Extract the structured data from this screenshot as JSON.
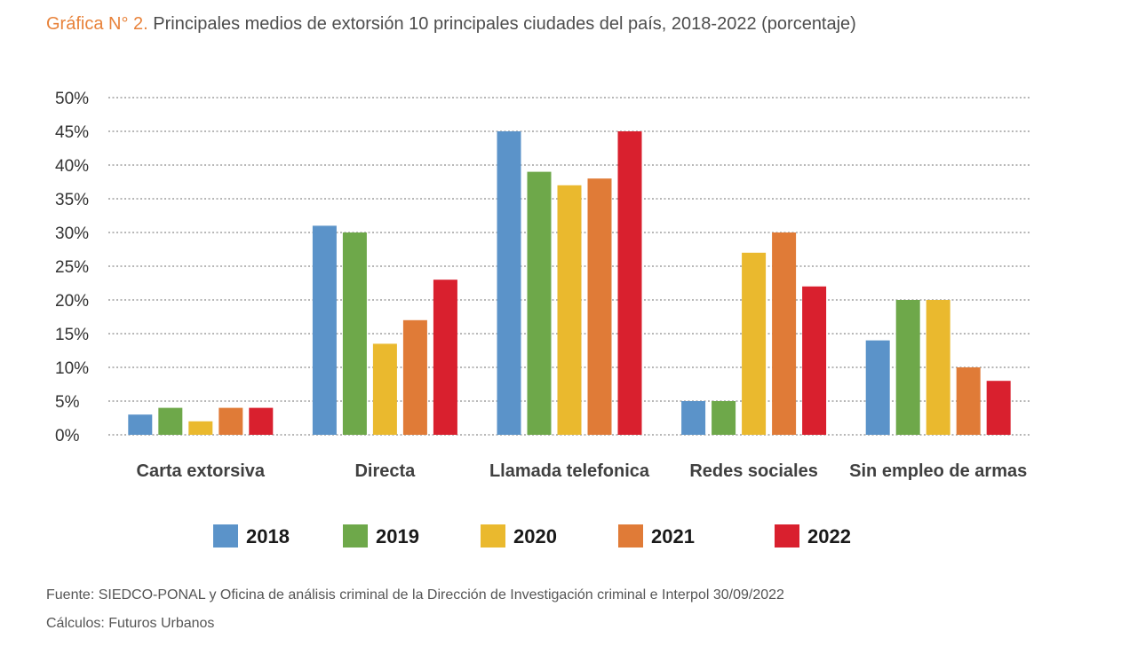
{
  "header": {
    "title_prefix": "Gráfica N° 2.",
    "title_text": " Principales medios de extorsión 10 principales ciudades del país, 2018-2022 (porcentaje)"
  },
  "chart_data": {
    "type": "bar",
    "title": "Principales medios de extorsión 10 principales ciudades del país, 2018-2022 (porcentaje)",
    "categories": [
      "Carta extorsiva",
      "Directa",
      "Llamada telefonica",
      "Redes sociales",
      "Sin empleo de armas"
    ],
    "series": [
      {
        "name": "2018",
        "color": "#5b93c9",
        "values": [
          3,
          31,
          45,
          5,
          14
        ]
      },
      {
        "name": "2019",
        "color": "#6ea84a",
        "values": [
          4,
          30,
          39,
          5,
          20
        ]
      },
      {
        "name": "2020",
        "color": "#eab92e",
        "values": [
          2,
          13.5,
          37,
          27,
          20
        ]
      },
      {
        "name": "2021",
        "color": "#e07b37",
        "values": [
          4,
          17,
          38,
          30,
          10
        ]
      },
      {
        "name": "2022",
        "color": "#d9202e",
        "values": [
          4,
          23,
          45,
          22,
          8
        ]
      }
    ],
    "ylim": [
      0,
      50
    ],
    "yticks": [
      "0%",
      "5%",
      "10%",
      "15%",
      "20%",
      "25%",
      "30%",
      "35%",
      "40%",
      "45%",
      "50%"
    ],
    "xlabel": "",
    "ylabel": "",
    "grid": true,
    "legend_position": "bottom"
  },
  "footer": {
    "source": "Fuente: SIEDCO-PONAL y Oficina de análisis criminal de la Dirección de Investigación criminal e Interpol 30/09/2022",
    "calc": "Cálculos: Futuros Urbanos"
  }
}
